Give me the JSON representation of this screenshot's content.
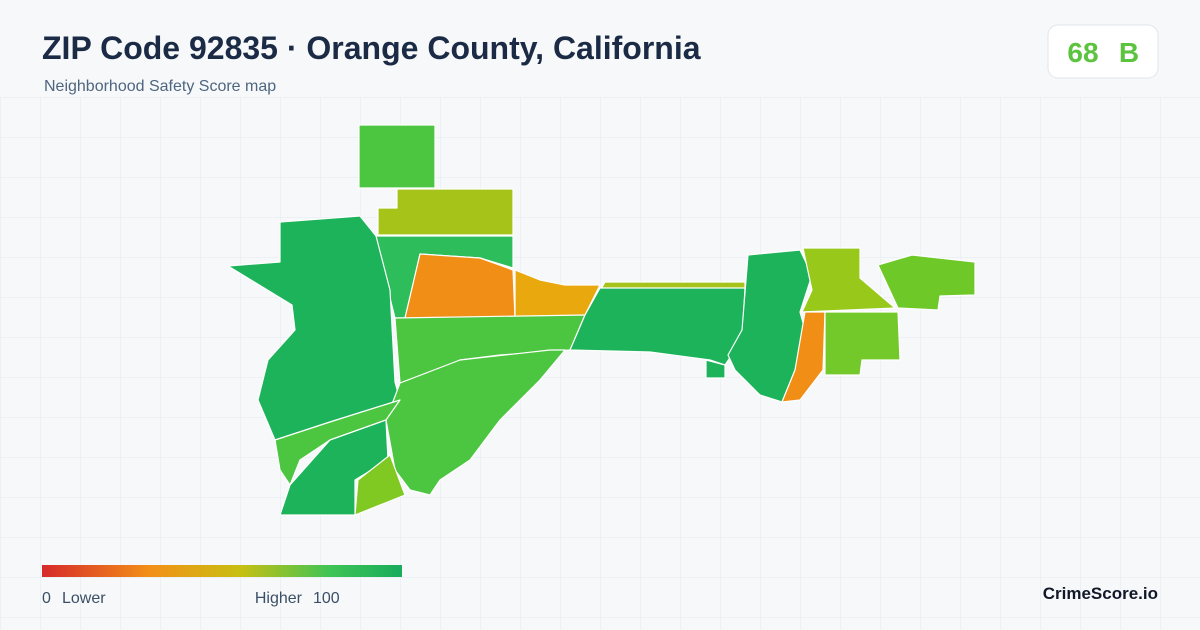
{
  "header": {
    "title": "ZIP Code 92835 · Orange County, California",
    "subtitle": "Neighborhood Safety Score map"
  },
  "score": {
    "value": 68,
    "grade": "B"
  },
  "legend": {
    "min": 0,
    "min_label": "Lower",
    "max_label": "Higher",
    "max": 100
  },
  "footer": {
    "brand": "CrimeScore.io"
  }
}
